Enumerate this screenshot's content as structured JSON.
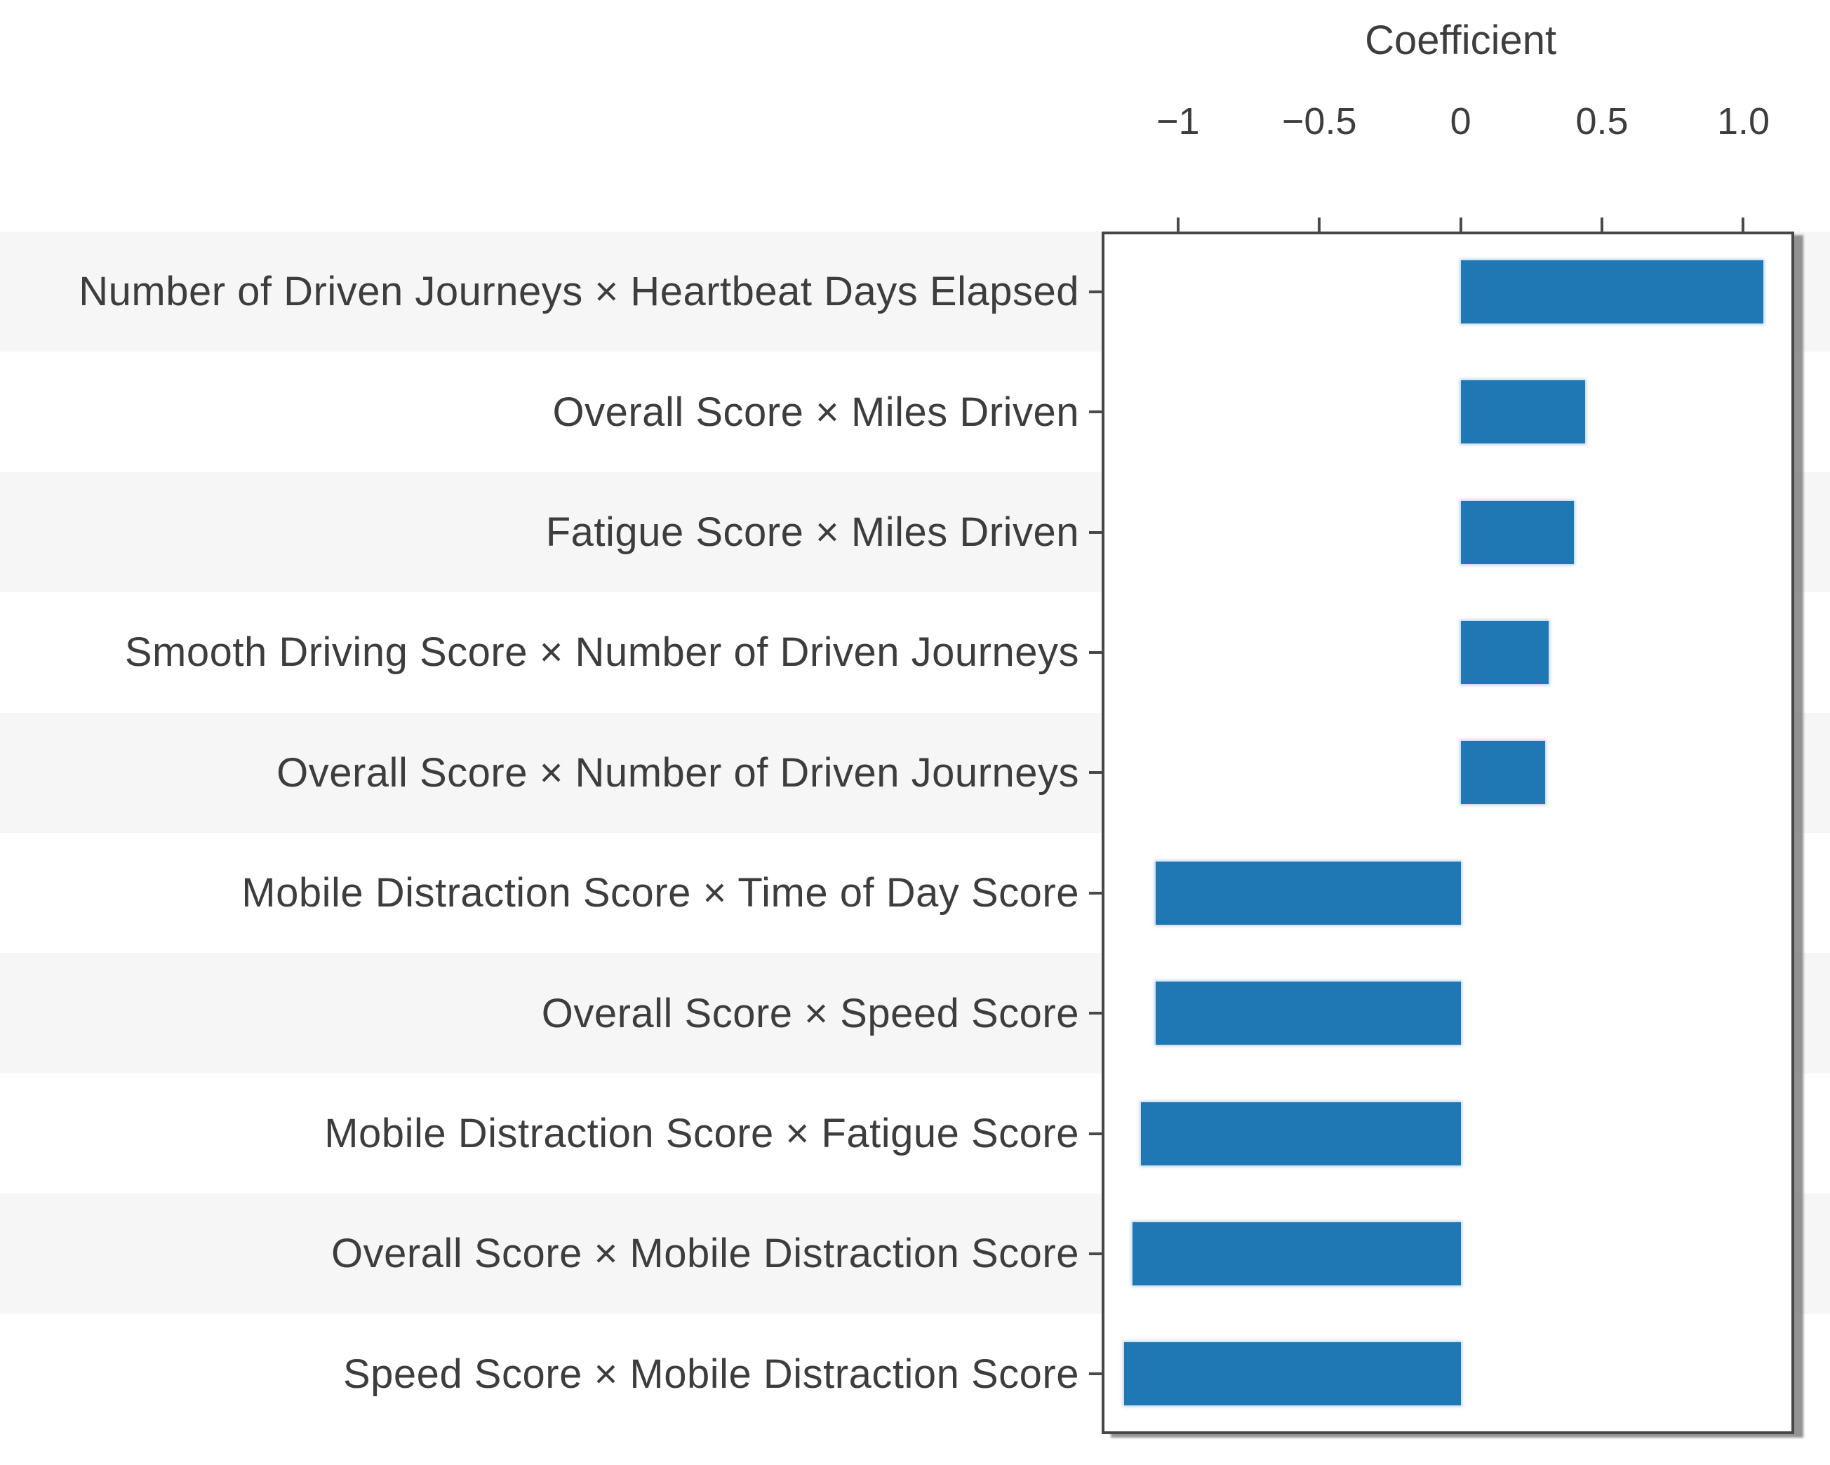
{
  "chart_data": {
    "type": "bar",
    "orientation": "horizontal",
    "title": "Coefficient",
    "xlabel": "Coefficient",
    "ylabel": "",
    "categories": [
      "Number of Driven Journeys × Heartbeat Days Elapsed",
      "Overall Score × Miles Driven",
      "Fatigue Score × Miles Driven",
      "Smooth Driving Score × Number of Driven Journeys",
      "Overall Score × Number of Driven Journeys",
      "Mobile Distraction Score × Time of Day Score",
      "Overall Score × Speed Score",
      "Mobile Distraction Score × Fatigue Score",
      "Overall Score × Mobile Distraction Score",
      "Speed Score × Mobile Distraction Score"
    ],
    "values": [
      1.07,
      0.44,
      0.4,
      0.31,
      0.3,
      -1.08,
      -1.08,
      -1.13,
      -1.16,
      -1.19
    ],
    "xlim": [
      -1.27,
      1.18
    ],
    "xticks": [
      {
        "value": -1,
        "label": "−1"
      },
      {
        "value": -0.5,
        "label": "−0.5"
      },
      {
        "value": 0,
        "label": "0"
      },
      {
        "value": 0.5,
        "label": "0.5"
      },
      {
        "value": 1.0,
        "label": "1.0"
      }
    ],
    "grid": false,
    "legend": null,
    "bar_color": "#1f77b4",
    "axis_color": "#474747",
    "text_color": "#3d3d3d",
    "stripe_colors": [
      "#f6f6f6",
      "#ffffff"
    ]
  }
}
